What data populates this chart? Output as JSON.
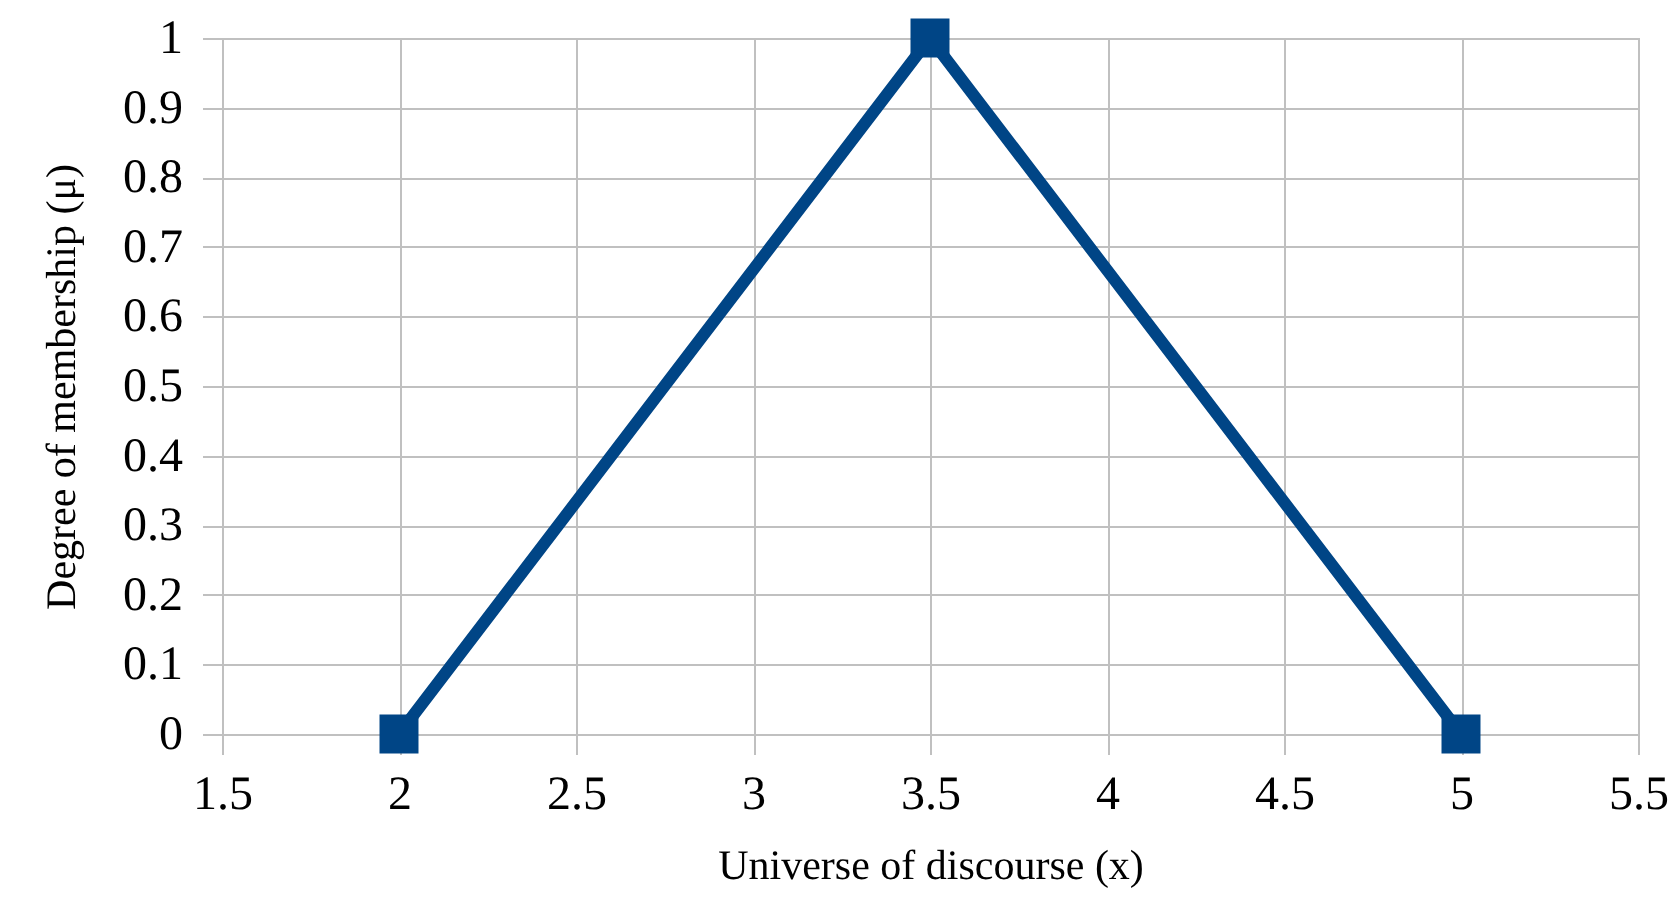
{
  "chart_data": {
    "type": "line",
    "xlabel": "Universe of discourse (x)",
    "ylabel": "Degree of membership (μ)",
    "x": [
      2,
      3.5,
      5
    ],
    "series": [
      {
        "color": "#004586",
        "values": [
          0,
          1,
          0
        ]
      }
    ],
    "xlim": [
      1.5,
      5.5
    ],
    "ylim": [
      0,
      1
    ],
    "xticks": [
      1.5,
      2,
      2.5,
      3,
      3.5,
      4,
      4.5,
      5,
      5.5
    ],
    "yticks": [
      0,
      0.1,
      0.2,
      0.3,
      0.4,
      0.5,
      0.6,
      0.7,
      0.8,
      0.9,
      1
    ],
    "grid": true,
    "marker": "square",
    "line_style": "solid"
  }
}
